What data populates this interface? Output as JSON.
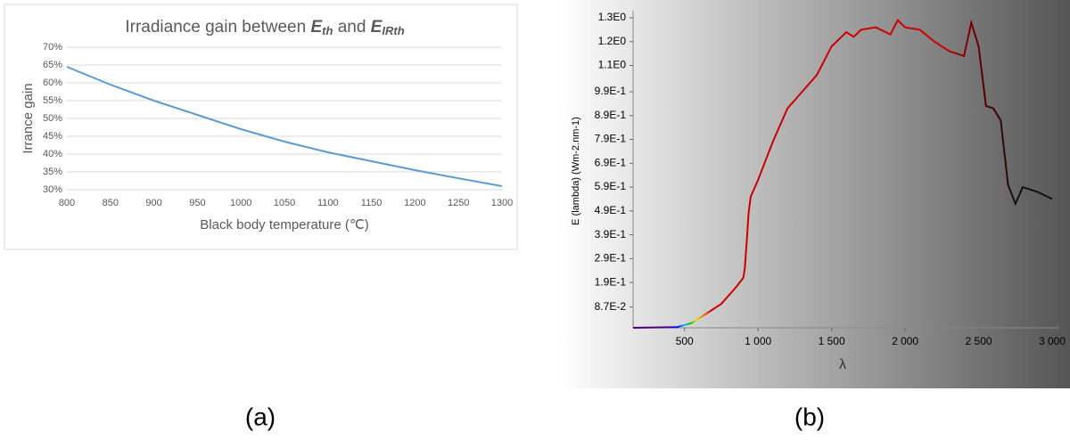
{
  "chart_data": [
    {
      "type": "line",
      "title": [
        "Irradiance gain between",
        "E",
        "th",
        "and",
        "E",
        "IRth"
      ],
      "xlabel": "Black body temperature (℃)",
      "ylabel": "Irrance gain",
      "caption": "(a)",
      "x": [
        800,
        850,
        900,
        950,
        1000,
        1050,
        1100,
        1150,
        1200,
        1250,
        1300
      ],
      "series": [
        {
          "color": "#5b9bd5",
          "values": [
            64.5,
            59.5,
            55,
            51,
            47,
            43.5,
            40.5,
            38,
            35.5,
            33.2,
            31
          ]
        }
      ],
      "xlim": [
        800,
        1300
      ],
      "xticks": [
        800,
        850,
        900,
        950,
        1000,
        1050,
        1100,
        1150,
        1200,
        1250,
        1300
      ],
      "ylim": [
        30,
        70
      ],
      "yticks": [
        {
          "value": 30,
          "label": "30%"
        },
        {
          "value": 35,
          "label": "35%"
        },
        {
          "value": 40,
          "label": "40%"
        },
        {
          "value": 45,
          "label": "45%"
        },
        {
          "value": 50,
          "label": "50%"
        },
        {
          "value": 55,
          "label": "55%"
        },
        {
          "value": 60,
          "label": "60%"
        },
        {
          "value": 65,
          "label": "65%"
        },
        {
          "value": 70,
          "label": "70%"
        }
      ],
      "grid": true
    },
    {
      "type": "line",
      "xlabel": "λ",
      "ylabel": "E (lambda) (Wm-2.nm-1)",
      "caption": "(b)",
      "x": [
        150,
        450,
        550,
        650,
        750,
        850,
        900,
        910,
        925,
        935,
        950,
        1000,
        1050,
        1100,
        1150,
        1200,
        1300,
        1400,
        1500,
        1600,
        1650,
        1700,
        1800,
        1900,
        1950,
        2000,
        2100,
        2200,
        2300,
        2400,
        2450,
        2500,
        2550,
        2600,
        2650,
        2700,
        2750,
        2800,
        2900,
        3000
      ],
      "series": [
        {
          "color": "#cc0000",
          "values": [
            0,
            0.003,
            0.02,
            0.06,
            0.1,
            0.17,
            0.21,
            0.25,
            0.38,
            0.48,
            0.55,
            0.62,
            0.7,
            0.78,
            0.85,
            0.92,
            0.99,
            1.06,
            1.18,
            1.24,
            1.22,
            1.25,
            1.26,
            1.23,
            1.29,
            1.26,
            1.25,
            1.2,
            1.16,
            1.14,
            1.28,
            1.18,
            0.93,
            0.92,
            0.87,
            0.6,
            0.52,
            0.59,
            0.57,
            0.54
          ]
        }
      ],
      "xlim": [
        150,
        3000
      ],
      "xticks": [
        500,
        {
          "value": 1000,
          "label": "1 000"
        },
        {
          "value": 1500,
          "label": "1 500"
        },
        {
          "value": 2000,
          "label": "2 000"
        },
        {
          "value": 2500,
          "label": "2 500"
        },
        {
          "value": 3000,
          "label": "3 000"
        }
      ],
      "ylim": [
        0,
        1.3
      ],
      "yticks": [
        {
          "value": 0.087,
          "label": "8.7E-2"
        },
        {
          "value": 0.19,
          "label": "1.9E-1"
        },
        {
          "value": 0.29,
          "label": "2.9E-1"
        },
        {
          "value": 0.39,
          "label": "3.9E-1"
        },
        {
          "value": 0.49,
          "label": "4.9E-1"
        },
        {
          "value": 0.59,
          "label": "5.9E-1"
        },
        {
          "value": 0.69,
          "label": "6.9E-1"
        },
        {
          "value": 0.79,
          "label": "7.9E-1"
        },
        {
          "value": 0.89,
          "label": "8.9E-1"
        },
        {
          "value": 0.99,
          "label": "9.9E-1"
        },
        {
          "value": 1.1,
          "label": "1.1E0"
        },
        {
          "value": 1.2,
          "label": "1.2E0"
        },
        {
          "value": 1.3,
          "label": "1.3E0"
        }
      ],
      "grid": false
    }
  ]
}
